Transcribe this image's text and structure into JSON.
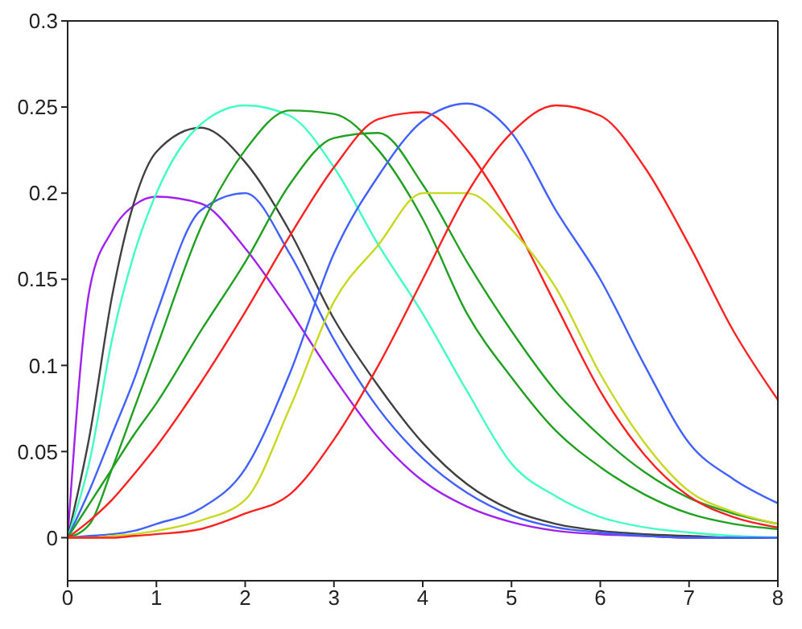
{
  "chart_data": {
    "type": "line",
    "x": [
      0,
      0.25,
      0.5,
      0.75,
      1,
      1.5,
      2,
      2.5,
      3,
      3.5,
      4,
      4.5,
      5,
      5.5,
      6,
      6.5,
      7,
      7.5,
      8
    ],
    "series": [
      {
        "color": "#a020f0",
        "values": [
          0,
          0.145,
          0.178,
          0.193,
          0.198,
          0.194,
          0.168,
          0.132,
          0.093,
          0.058,
          0.033,
          0.018,
          0.009,
          0.004,
          0.002,
          0.001,
          0,
          0,
          0
        ]
      },
      {
        "color": "#404040",
        "values": [
          0,
          0.06,
          0.14,
          0.195,
          0.224,
          0.238,
          0.218,
          0.178,
          0.127,
          0.088,
          0.055,
          0.031,
          0.016,
          0.008,
          0.004,
          0.002,
          0.001,
          0,
          0
        ]
      },
      {
        "color": "#40ffc0",
        "values": [
          0,
          0.045,
          0.115,
          0.165,
          0.2,
          0.24,
          0.251,
          0.245,
          0.215,
          0.17,
          0.13,
          0.085,
          0.043,
          0.024,
          0.012,
          0.006,
          0.003,
          0.001,
          0
        ]
      },
      {
        "color": "#4060ff",
        "values": [
          0,
          0.028,
          0.06,
          0.092,
          0.13,
          0.19,
          0.2,
          0.165,
          0.115,
          0.075,
          0.046,
          0.026,
          0.013,
          0.006,
          0.003,
          0.001,
          0,
          0,
          0
        ]
      },
      {
        "color": "#20a020",
        "values": [
          0,
          0.008,
          0.04,
          0.075,
          0.11,
          0.18,
          0.225,
          0.248,
          0.246,
          0.225,
          0.185,
          0.13,
          0.093,
          0.062,
          0.041,
          0.025,
          0.014,
          0.008,
          0.005
        ]
      },
      {
        "color": "#20a020",
        "values": [
          0,
          0.02,
          0.04,
          0.06,
          0.078,
          0.12,
          0.16,
          0.205,
          0.232,
          0.235,
          0.205,
          0.16,
          0.12,
          0.085,
          0.059,
          0.038,
          0.023,
          0.014,
          0.008
        ]
      },
      {
        "color": "#ff2020",
        "values": [
          0,
          0.01,
          0.022,
          0.037,
          0.053,
          0.09,
          0.131,
          0.175,
          0.215,
          0.243,
          0.247,
          0.225,
          0.185,
          0.135,
          0.085,
          0.048,
          0.024,
          0.012,
          0.006
        ]
      },
      {
        "color": "#4060ff",
        "values": [
          0,
          0.001,
          0.002,
          0.004,
          0.008,
          0.017,
          0.04,
          0.095,
          0.165,
          0.21,
          0.242,
          0.252,
          0.235,
          0.19,
          0.15,
          0.1,
          0.055,
          0.034,
          0.02
        ]
      },
      {
        "color": "#c8d820",
        "values": [
          0,
          0,
          0.001,
          0.002,
          0.004,
          0.01,
          0.022,
          0.075,
          0.137,
          0.17,
          0.2,
          0.2,
          0.179,
          0.145,
          0.095,
          0.055,
          0.027,
          0.015,
          0.008
        ]
      },
      {
        "color": "#ff2020",
        "values": [
          0,
          0,
          0,
          0.001,
          0.002,
          0.005,
          0.014,
          0.025,
          0.057,
          0.1,
          0.15,
          0.2,
          0.235,
          0.251,
          0.245,
          0.215,
          0.17,
          0.12,
          0.08
        ]
      }
    ],
    "xlim": [
      0,
      8
    ],
    "xticks": [
      0,
      1,
      2,
      3,
      4,
      5,
      6,
      7,
      8
    ],
    "ylim": [
      -0.025,
      0.3
    ],
    "yticks": [
      0,
      0.05,
      0.1,
      0.15,
      0.2,
      0.25,
      0.3
    ]
  }
}
